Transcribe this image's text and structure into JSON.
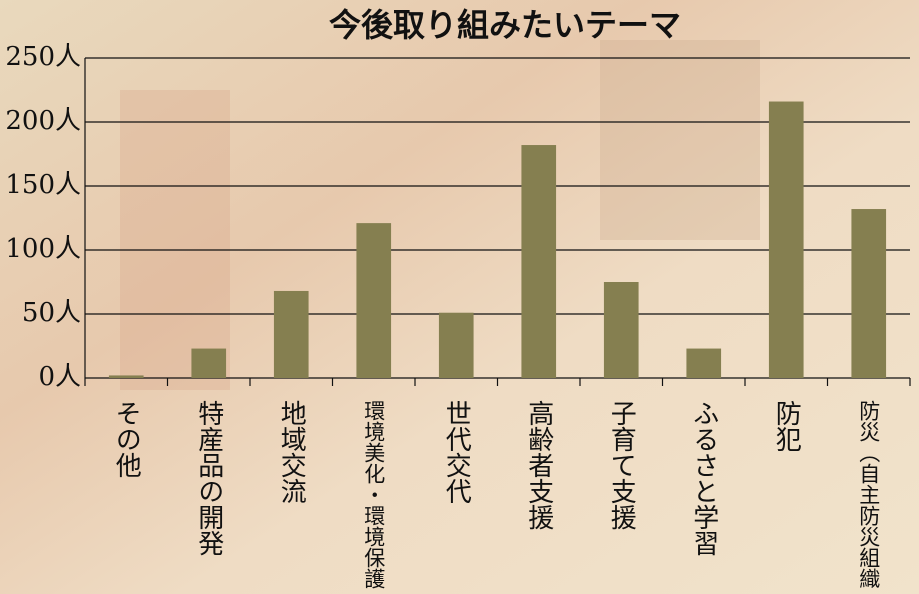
{
  "chart_data": {
    "type": "bar",
    "title": "今後取り組みたいテーマ",
    "categories": [
      "その他",
      "特産品の開発",
      "地域交流",
      "環境美化・環境保護",
      "世代交代",
      "高齢者支援",
      "子育て支援",
      "ふるさと学習",
      "防犯",
      "防災（自主防災組織"
    ],
    "values": [
      2,
      23,
      68,
      121,
      51,
      182,
      75,
      23,
      216,
      132
    ],
    "color": "#857f50",
    "ylim": [
      0,
      250
    ],
    "yticks": [
      {
        "value": 0,
        "label": "0人"
      },
      {
        "value": 50,
        "label": "50人"
      },
      {
        "value": 100,
        "label": "100人"
      },
      {
        "value": 150,
        "label": "150人"
      },
      {
        "value": 200,
        "label": "200人"
      },
      {
        "value": 250,
        "label": "250人"
      }
    ],
    "grid": true
  }
}
